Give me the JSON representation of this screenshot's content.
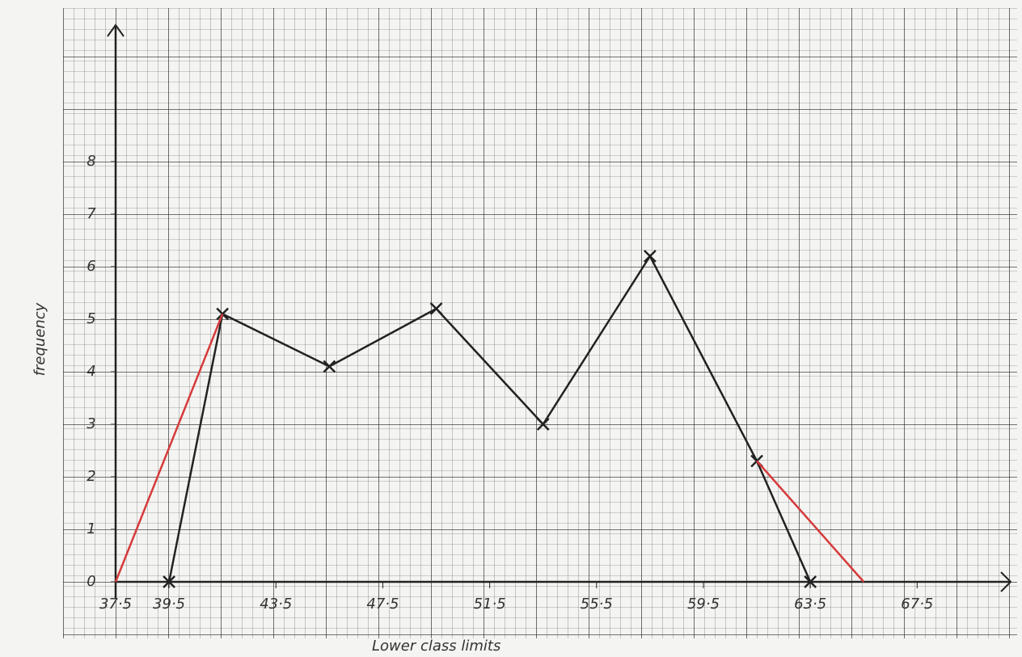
{
  "chart_data": {
    "type": "line",
    "x_label": "Lower class limits",
    "y_label": "frequency",
    "xlim": [
      37.5,
      71
    ],
    "ylim": [
      0,
      10.6
    ],
    "xticks": [
      {
        "value": 37.5,
        "label": "37·5"
      },
      {
        "value": 39.5,
        "label": "39·5"
      },
      {
        "value": 43.5,
        "label": "43·5"
      },
      {
        "value": 47.5,
        "label": "47·5"
      },
      {
        "value": 51.5,
        "label": "51·5"
      },
      {
        "value": 55.5,
        "label": "55·5"
      },
      {
        "value": 59.5,
        "label": "59·5"
      },
      {
        "value": 63.5,
        "label": "63·5"
      },
      {
        "value": 67.5,
        "label": "67·5"
      }
    ],
    "yticks": [
      0,
      1,
      2,
      3,
      4,
      5,
      6,
      7,
      8
    ],
    "grid": true,
    "series": [
      {
        "color": "#222222",
        "markers": true,
        "x": [
          39.5,
          41.5,
          45.5,
          49.5,
          53.5,
          57.5,
          61.5,
          63.5
        ],
        "values": [
          0,
          5.1,
          4.1,
          5.2,
          3,
          6.2,
          2.3,
          0
        ]
      },
      {
        "color": "#d63a3a",
        "markers": false,
        "x": [
          37.5,
          41.5
        ],
        "values": [
          0,
          5.1
        ]
      },
      {
        "color": "#d63a3a",
        "markers": false,
        "x": [
          61.5,
          65.5
        ],
        "values": [
          2.3,
          0
        ]
      }
    ]
  }
}
